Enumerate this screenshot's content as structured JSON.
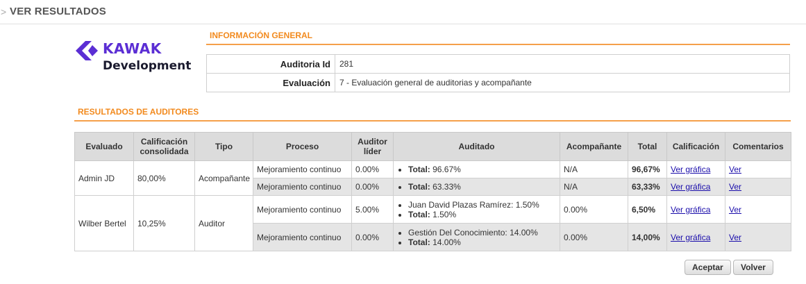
{
  "header": {
    "arrow": ">",
    "title": "VER RESULTADOS"
  },
  "logo": {
    "brand": "KAWAK",
    "sub": "Development",
    "colors": {
      "brand": "#5b2ed4"
    }
  },
  "general": {
    "title": "INFORMACIÓN GENERAL",
    "rows": [
      {
        "label": "Auditoria Id",
        "value": "281"
      },
      {
        "label": "Evaluación",
        "value": "7 - Evaluación general de auditorias y acompañante"
      }
    ]
  },
  "results": {
    "title": "RESULTADOS DE AUDITORES",
    "columns": [
      "Evaluado",
      "Calificación consolidada",
      "Tipo",
      "Proceso",
      "Auditor líder",
      "Auditado",
      "Acompañante",
      "Total",
      "Calificación",
      "Comentarios"
    ],
    "groups": [
      {
        "evaluado": "Admin JD",
        "calificacion": "80,00%",
        "tipo": "Acompañante",
        "rows": [
          {
            "proceso": "Mejoramiento continuo",
            "lider": "0.00%",
            "items": [],
            "total_label": "Total:",
            "total_value": "96.67%",
            "acompanante": "N/A",
            "total": "96,67%",
            "grafica": "Ver gráfica",
            "comentarios": "Ver"
          },
          {
            "proceso": "Mejoramiento continuo",
            "lider": "0.00%",
            "items": [],
            "total_label": "Total:",
            "total_value": "63.33%",
            "acompanante": "N/A",
            "total": "63,33%",
            "grafica": "Ver gráfica",
            "comentarios": "Ver"
          }
        ]
      },
      {
        "evaluado": "Wilber Bertel",
        "calificacion": "10,25%",
        "tipo": "Auditor",
        "rows": [
          {
            "proceso": "Mejoramiento continuo",
            "lider": "5.00%",
            "items": [
              "Juan David Plazas Ramírez: 1.50%"
            ],
            "total_label": "Total:",
            "total_value": "1.50%",
            "acompanante": "0.00%",
            "total": "6,50%",
            "grafica": "Ver gráfica",
            "comentarios": "Ver"
          },
          {
            "proceso": "Mejoramiento continuo",
            "lider": "0.00%",
            "items": [
              "Gestión Del Conocimiento: 14.00%"
            ],
            "total_label": "Total:",
            "total_value": "14.00%",
            "acompanante": "0.00%",
            "total": "14,00%",
            "grafica": "Ver gráfica",
            "comentarios": "Ver"
          }
        ]
      }
    ]
  },
  "buttons": {
    "accept": "Aceptar",
    "back": "Volver"
  },
  "colors": {
    "accent": "#f28a1e",
    "shade": "#e5e5e5",
    "link": "#1a0dab"
  }
}
